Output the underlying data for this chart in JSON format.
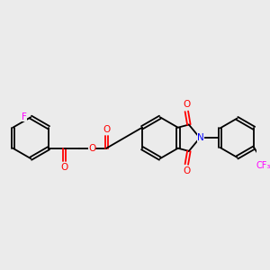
{
  "background_color": "#ebebeb",
  "bond_color": "#000000",
  "atom_colors": {
    "O": "#ff0000",
    "N": "#0000ff",
    "F": "#ff00ff",
    "C": "#000000"
  },
  "lw": 1.3,
  "fs": 7.5,
  "r_hex": 0.72
}
